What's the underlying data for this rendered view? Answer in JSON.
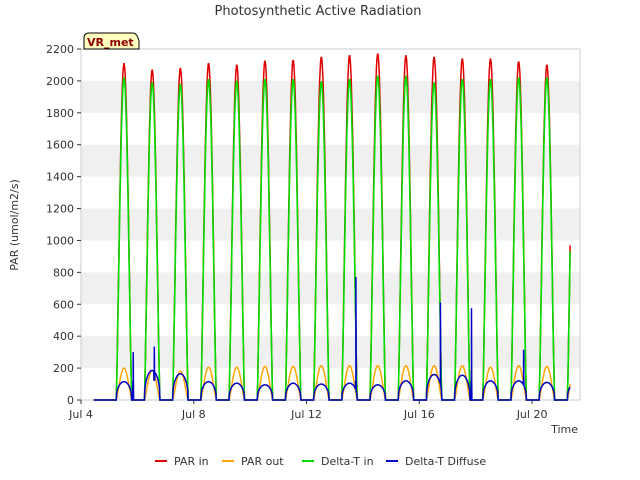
{
  "chart_data": {
    "type": "line",
    "title": "Photosynthetic Active Radiation",
    "xlabel": "Time",
    "ylabel": "PAR (umol/m2/s)",
    "badge": "VR_met",
    "xlim": [
      4.0,
      21.7
    ],
    "ylim": [
      0,
      2200
    ],
    "yticks": [
      0,
      200,
      400,
      600,
      800,
      1000,
      1200,
      1400,
      1600,
      1800,
      2000,
      2200
    ],
    "xticks": [
      {
        "value": 4,
        "label": "Jul 4"
      },
      {
        "value": 8,
        "label": "Jul 8"
      },
      {
        "value": 12,
        "label": "Jul 12"
      },
      {
        "value": 16,
        "label": "Jul 16"
      },
      {
        "value": 20,
        "label": "Jul 20"
      }
    ],
    "grid": "horizontal bands",
    "legend_position": "bottom",
    "days": [
      4,
      5,
      6,
      7,
      8,
      9,
      10,
      11,
      12,
      13,
      14,
      15,
      16,
      17,
      18,
      19,
      20,
      21
    ],
    "series": [
      {
        "name": "PAR in",
        "color": "#e00000",
        "peaks": [
          0,
          2110,
          2070,
          2080,
          2110,
          2100,
          2125,
          2130,
          2150,
          2160,
          2170,
          2160,
          2150,
          2140,
          2140,
          2120,
          2100,
          2090
        ]
      },
      {
        "name": "PAR out",
        "color": "#ffa500",
        "peaks": [
          0,
          200,
          185,
          180,
          205,
          205,
          210,
          210,
          215,
          215,
          215,
          215,
          215,
          215,
          205,
          215,
          210,
          215
        ]
      },
      {
        "name": "Delta-T in",
        "color": "#00dd00",
        "peaks": [
          0,
          2020,
          1990,
          1980,
          2010,
          2000,
          2010,
          2010,
          1995,
          2010,
          2030,
          2030,
          1990,
          2010,
          2010,
          2020,
          2020,
          2010
        ]
      },
      {
        "name": "Delta-T Diffuse",
        "color": "#0000cc",
        "peaks": [
          0,
          115,
          185,
          165,
          115,
          105,
          95,
          105,
          100,
          105,
          95,
          120,
          160,
          155,
          120,
          120,
          110,
          105
        ]
      }
    ],
    "diffuse_spikes": [
      {
        "x": 5.85,
        "y": 300
      },
      {
        "x": 6.6,
        "y": 335
      },
      {
        "x": 13.75,
        "y": 770
      },
      {
        "x": 16.75,
        "y": 610
      },
      {
        "x": 17.85,
        "y": 575
      },
      {
        "x": 19.7,
        "y": 315
      }
    ]
  }
}
